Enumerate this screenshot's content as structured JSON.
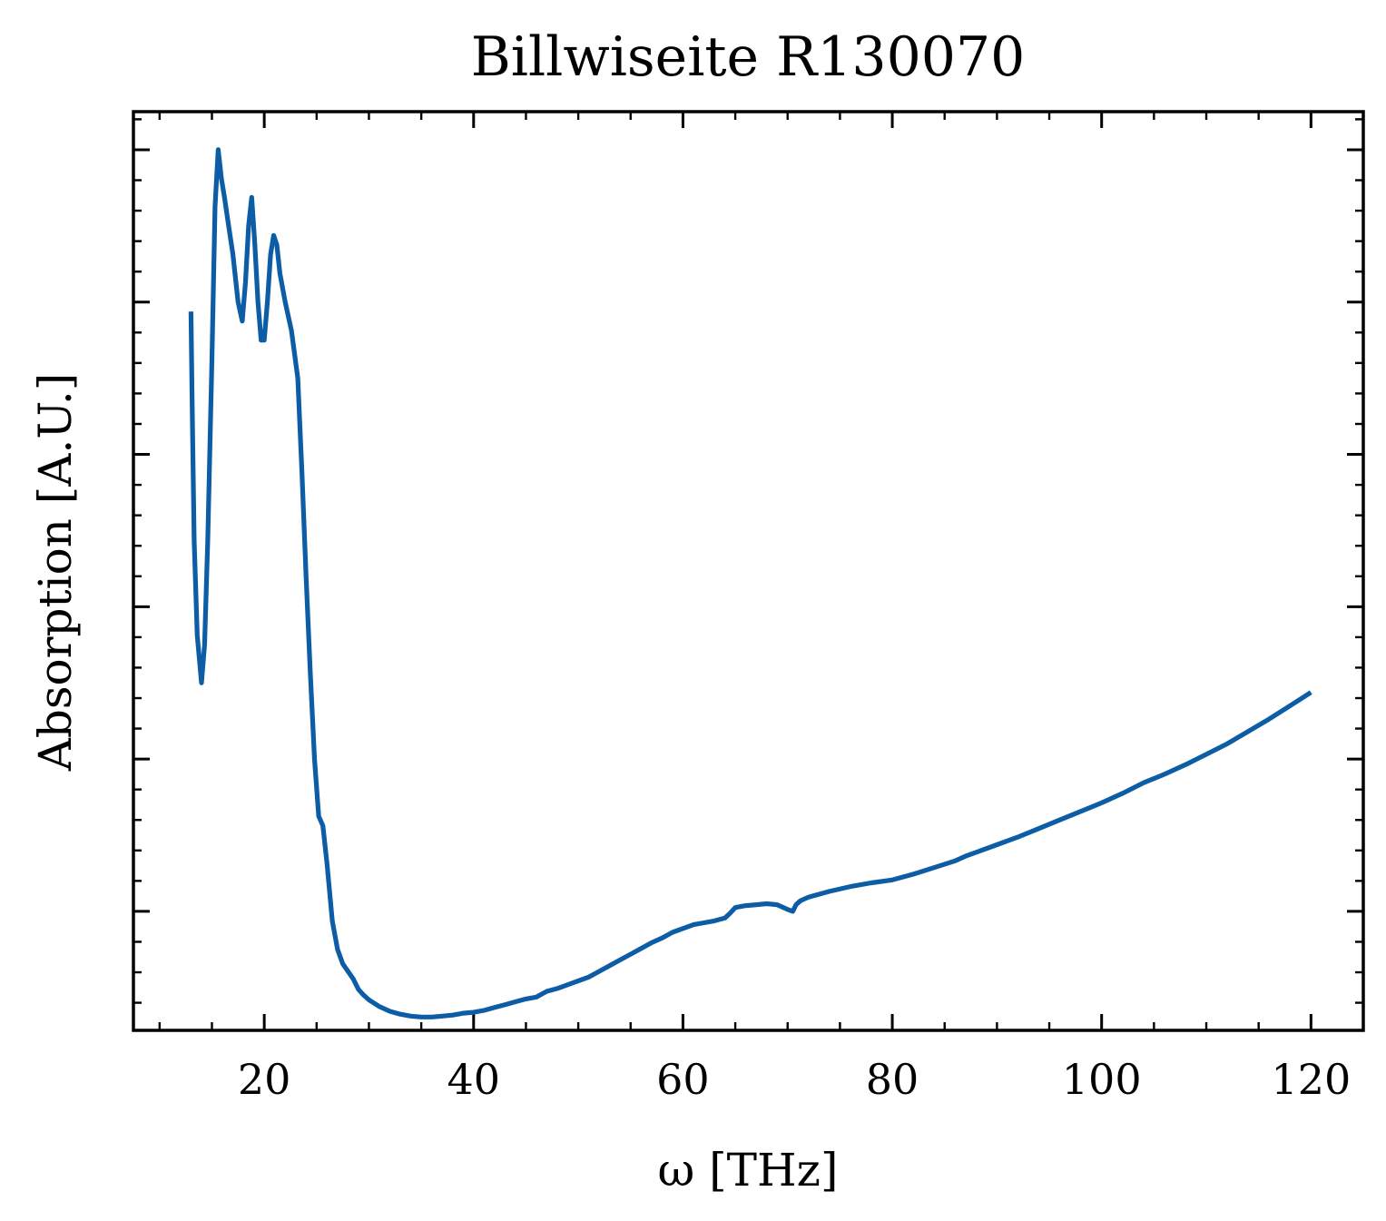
{
  "chart_data": {
    "type": "line",
    "title": "Billwiseite R130070",
    "xlabel": "ω [THz]",
    "ylabel": "Absorption [A.U.]",
    "xlim": [
      7.5,
      125
    ],
    "ylim": [
      0.035,
      1.0
    ],
    "xticks": [
      20,
      40,
      60,
      80,
      100,
      120
    ],
    "xtick_labels": [
      "20",
      "40",
      "60",
      "80",
      "100",
      "120"
    ],
    "yticks": [
      0.16,
      0.32,
      0.48,
      0.64,
      0.8,
      0.96
    ],
    "ytick_labels_visible": false,
    "grid": false,
    "legend": "none",
    "colors": {
      "series": "#0C5DA5",
      "axis": "#000000"
    },
    "series": [
      {
        "x": [
          13,
          13.1,
          13.3,
          13.6,
          14,
          14.3,
          14.6,
          15,
          15.3,
          15.6,
          15.9,
          16.2,
          16.6,
          17,
          17.5,
          17.9,
          18.2,
          18.5,
          18.8,
          19.1,
          19.4,
          19.7,
          20.0,
          20.3,
          20.6,
          20.9,
          21.2,
          21.5,
          22,
          22.6,
          23.2,
          23.6,
          24,
          24.4,
          24.8,
          25.2,
          25.6,
          26,
          26.5,
          27,
          27.5,
          28,
          28.5,
          29,
          29.5,
          30,
          31,
          32,
          33,
          34,
          35,
          36,
          37,
          38,
          39,
          40,
          41,
          42,
          43,
          44,
          45,
          46,
          46.5,
          47,
          48,
          49,
          50,
          51,
          52,
          53,
          54,
          55,
          56,
          57,
          58,
          59,
          60,
          61,
          62,
          63,
          64,
          64.5,
          65,
          66,
          67,
          68,
          69,
          70,
          70.5,
          70.8,
          71.2,
          72,
          74,
          76,
          78,
          80,
          82,
          84,
          86,
          87,
          88,
          90,
          92,
          94,
          96,
          98,
          100,
          102,
          104,
          106,
          108,
          110,
          112,
          114,
          116,
          118,
          120
        ],
        "y": [
          0.79,
          0.7,
          0.55,
          0.45,
          0.4,
          0.44,
          0.55,
          0.74,
          0.9,
          0.96,
          0.93,
          0.91,
          0.88,
          0.85,
          0.8,
          0.78,
          0.82,
          0.88,
          0.91,
          0.86,
          0.8,
          0.76,
          0.76,
          0.8,
          0.85,
          0.87,
          0.86,
          0.83,
          0.8,
          0.77,
          0.72,
          0.62,
          0.51,
          0.41,
          0.32,
          0.26,
          0.25,
          0.21,
          0.15,
          0.12,
          0.105,
          0.097,
          0.089,
          0.078,
          0.072,
          0.067,
          0.06,
          0.055,
          0.052,
          0.05,
          0.049,
          0.049,
          0.05,
          0.051,
          0.053,
          0.054,
          0.056,
          0.059,
          0.062,
          0.065,
          0.068,
          0.07,
          0.073,
          0.076,
          0.079,
          0.083,
          0.087,
          0.091,
          0.097,
          0.103,
          0.109,
          0.115,
          0.121,
          0.127,
          0.132,
          0.138,
          0.142,
          0.146,
          0.148,
          0.15,
          0.153,
          0.158,
          0.164,
          0.166,
          0.167,
          0.168,
          0.167,
          0.162,
          0.16,
          0.167,
          0.171,
          0.175,
          0.181,
          0.186,
          0.19,
          0.193,
          0.199,
          0.206,
          0.213,
          0.218,
          0.222,
          0.23,
          0.238,
          0.247,
          0.256,
          0.265,
          0.274,
          0.284,
          0.295,
          0.304,
          0.314,
          0.325,
          0.336,
          0.349,
          0.362,
          0.376,
          0.39
        ]
      }
    ]
  }
}
